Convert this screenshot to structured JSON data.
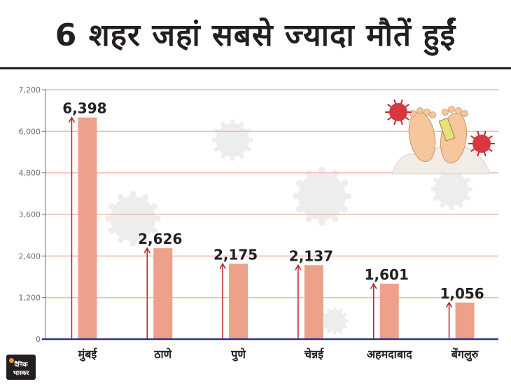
{
  "title": "6 शहर जहां सबसे ज्यादा मौतें हुईं",
  "logo": {
    "line1": "दैनिक",
    "line2": "भास्कर"
  },
  "colors": {
    "bar": "#eda08a",
    "arrow": "#c1272d",
    "grid": "#f2b8a8",
    "axis": "#2e3192",
    "text": "#231f20"
  },
  "chart_data": {
    "type": "bar",
    "categories": [
      "मुंबई",
      "ठाणे",
      "पुणे",
      "चेन्नई",
      "अहमदाबाद",
      "बेंगलुरु"
    ],
    "values": [
      6398,
      2626,
      2175,
      2137,
      1601,
      1056
    ],
    "value_labels": [
      "6,398",
      "2,626",
      "2,175",
      "2,137",
      "1,601",
      "1,056"
    ],
    "ylim": [
      0,
      7200
    ],
    "yticks": [
      0,
      1200,
      2400,
      3600,
      4800,
      6000,
      7200
    ],
    "ytick_labels": [
      "0",
      "1,200",
      "2,400",
      "3,600",
      "4,800",
      "6,000",
      "7,200"
    ],
    "grid": true,
    "xlabel": "",
    "ylabel": ""
  }
}
